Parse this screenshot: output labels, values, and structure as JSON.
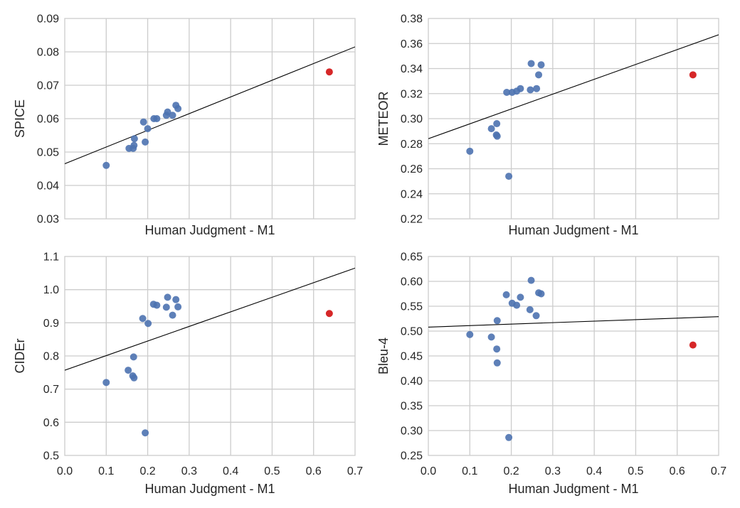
{
  "chart_data": [
    {
      "type": "scatter",
      "title": "",
      "xlabel": "Human Judgment - M1",
      "ylabel": "SPICE",
      "xlim": [
        0.0,
        0.7
      ],
      "ylim": [
        0.03,
        0.09
      ],
      "xticks": [
        0.1,
        0.2,
        0.3,
        0.4,
        0.5,
        0.6
      ],
      "yticks": [
        "0.03",
        "0.04",
        "0.05",
        "0.06",
        "0.07",
        "0.08",
        "0.09"
      ],
      "show_xtick_labels": false,
      "grid": true,
      "point_color": "#4c72b0",
      "highlight_color": "#d62728",
      "fit_line": [
        [
          0.0,
          0.0465
        ],
        [
          0.7,
          0.0815
        ]
      ],
      "points": [
        {
          "x": 0.1,
          "y": 0.046
        },
        {
          "x": 0.155,
          "y": 0.0511
        },
        {
          "x": 0.165,
          "y": 0.0511
        },
        {
          "x": 0.167,
          "y": 0.052
        },
        {
          "x": 0.168,
          "y": 0.054
        },
        {
          "x": 0.19,
          "y": 0.059
        },
        {
          "x": 0.194,
          "y": 0.053
        },
        {
          "x": 0.2,
          "y": 0.057
        },
        {
          "x": 0.215,
          "y": 0.06
        },
        {
          "x": 0.222,
          "y": 0.06
        },
        {
          "x": 0.245,
          "y": 0.061
        },
        {
          "x": 0.248,
          "y": 0.062
        },
        {
          "x": 0.26,
          "y": 0.061
        },
        {
          "x": 0.268,
          "y": 0.064
        },
        {
          "x": 0.273,
          "y": 0.063
        }
      ],
      "highlight_points": [
        {
          "x": 0.638,
          "y": 0.074
        }
      ]
    },
    {
      "type": "scatter",
      "title": "",
      "xlabel": "Human Judgment - M1",
      "ylabel": "METEOR",
      "xlim": [
        0.0,
        0.7
      ],
      "ylim": [
        0.22,
        0.38
      ],
      "xticks": [
        0.1,
        0.2,
        0.3,
        0.4,
        0.5,
        0.6
      ],
      "yticks": [
        "0.22",
        "0.24",
        "0.26",
        "0.28",
        "0.30",
        "0.32",
        "0.34",
        "0.36",
        "0.38"
      ],
      "show_xtick_labels": false,
      "grid": true,
      "point_color": "#4c72b0",
      "highlight_color": "#d62728",
      "fit_line": [
        [
          0.0,
          0.284
        ],
        [
          0.7,
          0.367
        ]
      ],
      "points": [
        {
          "x": 0.1,
          "y": 0.274
        },
        {
          "x": 0.152,
          "y": 0.292
        },
        {
          "x": 0.164,
          "y": 0.287
        },
        {
          "x": 0.165,
          "y": 0.296
        },
        {
          "x": 0.166,
          "y": 0.286
        },
        {
          "x": 0.189,
          "y": 0.321
        },
        {
          "x": 0.194,
          "y": 0.254
        },
        {
          "x": 0.202,
          "y": 0.321
        },
        {
          "x": 0.213,
          "y": 0.322
        },
        {
          "x": 0.222,
          "y": 0.324
        },
        {
          "x": 0.246,
          "y": 0.323
        },
        {
          "x": 0.248,
          "y": 0.344
        },
        {
          "x": 0.261,
          "y": 0.324
        },
        {
          "x": 0.266,
          "y": 0.335
        },
        {
          "x": 0.272,
          "y": 0.343
        }
      ],
      "highlight_points": [
        {
          "x": 0.638,
          "y": 0.335
        }
      ]
    },
    {
      "type": "scatter",
      "title": "",
      "xlabel": "Human Judgment - M1",
      "ylabel": "CIDEr",
      "xlim": [
        0.0,
        0.7
      ],
      "ylim": [
        0.5,
        1.1
      ],
      "xticks": [
        "0.0",
        "0.1",
        "0.2",
        "0.3",
        "0.4",
        "0.5",
        "0.6",
        "0.7"
      ],
      "yticks": [
        "0.5",
        "0.6",
        "0.7",
        "0.8",
        "0.9",
        "1.0",
        "1.1"
      ],
      "show_xtick_labels": true,
      "grid": true,
      "point_color": "#4c72b0",
      "highlight_color": "#d62728",
      "fit_line": [
        [
          0.0,
          0.757
        ],
        [
          0.7,
          1.065
        ]
      ],
      "points": [
        {
          "x": 0.1,
          "y": 0.72
        },
        {
          "x": 0.153,
          "y": 0.757
        },
        {
          "x": 0.164,
          "y": 0.74
        },
        {
          "x": 0.167,
          "y": 0.734
        },
        {
          "x": 0.166,
          "y": 0.797
        },
        {
          "x": 0.188,
          "y": 0.913
        },
        {
          "x": 0.194,
          "y": 0.568
        },
        {
          "x": 0.201,
          "y": 0.898
        },
        {
          "x": 0.214,
          "y": 0.956
        },
        {
          "x": 0.222,
          "y": 0.953
        },
        {
          "x": 0.245,
          "y": 0.947
        },
        {
          "x": 0.248,
          "y": 0.977
        },
        {
          "x": 0.26,
          "y": 0.923
        },
        {
          "x": 0.268,
          "y": 0.97
        },
        {
          "x": 0.273,
          "y": 0.948
        }
      ],
      "highlight_points": [
        {
          "x": 0.638,
          "y": 0.928
        }
      ]
    },
    {
      "type": "scatter",
      "title": "",
      "xlabel": "Human Judgment - M1",
      "ylabel": "Bleu-4",
      "xlim": [
        0.0,
        0.7
      ],
      "ylim": [
        0.25,
        0.65
      ],
      "xticks": [
        "0.0",
        "0.1",
        "0.2",
        "0.3",
        "0.4",
        "0.5",
        "0.6",
        "0.7"
      ],
      "yticks": [
        "0.25",
        "0.30",
        "0.35",
        "0.40",
        "0.45",
        "0.50",
        "0.55",
        "0.60",
        "0.65"
      ],
      "show_xtick_labels": true,
      "grid": true,
      "point_color": "#4c72b0",
      "highlight_color": "#d62728",
      "fit_line": [
        [
          0.0,
          0.508
        ],
        [
          0.7,
          0.529
        ]
      ],
      "points": [
        {
          "x": 0.1,
          "y": 0.493
        },
        {
          "x": 0.152,
          "y": 0.488
        },
        {
          "x": 0.165,
          "y": 0.464
        },
        {
          "x": 0.166,
          "y": 0.521
        },
        {
          "x": 0.166,
          "y": 0.436
        },
        {
          "x": 0.188,
          "y": 0.573
        },
        {
          "x": 0.194,
          "y": 0.286
        },
        {
          "x": 0.202,
          "y": 0.556
        },
        {
          "x": 0.213,
          "y": 0.552
        },
        {
          "x": 0.222,
          "y": 0.568
        },
        {
          "x": 0.245,
          "y": 0.543
        },
        {
          "x": 0.248,
          "y": 0.602
        },
        {
          "x": 0.26,
          "y": 0.531
        },
        {
          "x": 0.266,
          "y": 0.577
        },
        {
          "x": 0.272,
          "y": 0.575
        }
      ],
      "highlight_points": [
        {
          "x": 0.638,
          "y": 0.472
        }
      ]
    }
  ]
}
